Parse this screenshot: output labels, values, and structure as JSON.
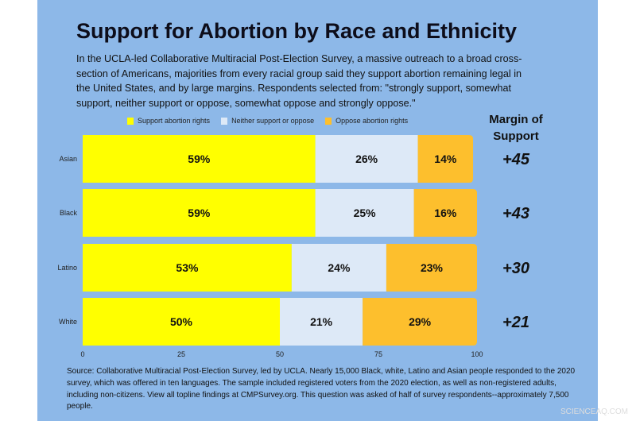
{
  "title": "Support for Abortion by Race and Ethnicity",
  "subtitle": "In the UCLA-led Collaborative Multiracial Post-Election Survey, a massive outreach to a broad cross-section of Americans, majorities from every racial group said they support abortion remaining legal in the United States, and by large margins. Respondents selected from: \"strongly support, somewhat support, neither support or oppose, somewhat oppose and strongly oppose.\"",
  "source": "Source: Collaborative Multiracial Post-Election Survey, led by UCLA. Nearly 15,000 Black, white, Latino and Asian people responded to the 2020 survey, which was offered in ten languages. The sample included registered voters from the 2020 election, as well as non-registered adults, including non-citizens. View all topline findings at CMPSurvey.org. This question was asked of half of survey respondents--approximately 7,500 people.",
  "watermark": "SCIENCEAQ.COM",
  "margin_header": "Margin of Support",
  "chart_data": {
    "type": "bar",
    "orientation": "horizontal",
    "stacked": true,
    "categories": [
      "Asian",
      "Black",
      "Latino",
      "White"
    ],
    "series": [
      {
        "name": "Support abortion rights",
        "values": [
          59,
          59,
          53,
          50
        ],
        "color": "#ffff00"
      },
      {
        "name": "Neither support or oppose",
        "values": [
          26,
          25,
          24,
          21
        ],
        "color": "#dde9f7"
      },
      {
        "name": "Oppose abortion rights",
        "values": [
          14,
          16,
          23,
          29
        ],
        "color": "#fdbf2d"
      }
    ],
    "margins": [
      "+45",
      "+43",
      "+30",
      "+21"
    ],
    "xlim": [
      0,
      100
    ],
    "xticks": [
      0,
      25,
      50,
      75,
      100
    ],
    "legend": "top",
    "grid": false
  },
  "colors": {
    "background": "#8db8e8"
  }
}
